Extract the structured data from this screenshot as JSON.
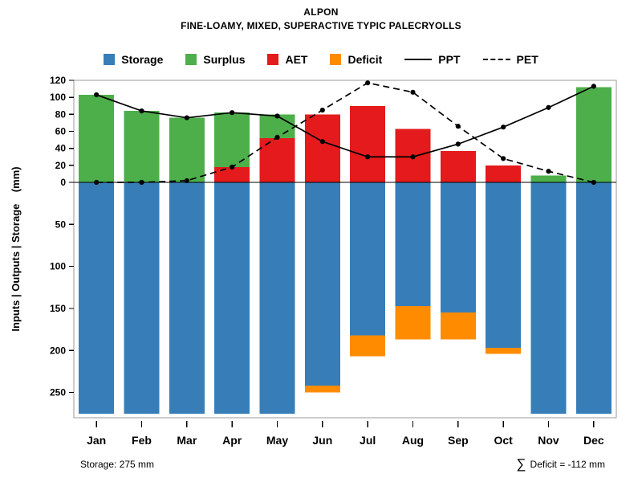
{
  "chart_data": {
    "type": "bar",
    "title": "ALPON",
    "subtitle": "FINE-LOAMY, MIXED, SUPERACTIVE TYPIC PALECRYOLLS",
    "ylabel": "Inputs | Outputs | Storage    (mm)",
    "categories": [
      "Jan",
      "Feb",
      "Mar",
      "Apr",
      "May",
      "Jun",
      "Jul",
      "Aug",
      "Sep",
      "Oct",
      "Nov",
      "Dec"
    ],
    "upper_axis": {
      "label": "Inputs | Outputs",
      "unit": "mm",
      "ylim": [
        0,
        120
      ],
      "yticks": [
        0,
        20,
        40,
        60,
        80,
        100,
        120
      ],
      "direction": "up"
    },
    "lower_axis": {
      "label": "Storage",
      "unit": "mm",
      "ylim": [
        0,
        280
      ],
      "yticks": [
        50,
        100,
        150,
        200,
        250
      ],
      "direction": "down"
    },
    "grid": false,
    "series": [
      {
        "name": "AET",
        "axis": "upper",
        "color": "#e41a1c",
        "values": [
          0,
          0,
          0,
          18,
          52,
          80,
          90,
          63,
          37,
          20,
          0,
          0
        ]
      },
      {
        "name": "Surplus",
        "axis": "upper",
        "color": "#4daf4a",
        "values": [
          103,
          84,
          76,
          64,
          28,
          0,
          0,
          0,
          0,
          0,
          8,
          112
        ]
      },
      {
        "name": "Storage",
        "axis": "lower",
        "color": "#377eb8",
        "values": [
          275,
          275,
          275,
          275,
          275,
          242,
          182,
          147,
          155,
          197,
          275,
          275
        ]
      },
      {
        "name": "Deficit",
        "axis": "lower",
        "color": "#ff8c00",
        "values": [
          0,
          0,
          0,
          0,
          0,
          8,
          25,
          40,
          32,
          7,
          0,
          0
        ]
      }
    ],
    "lines": [
      {
        "name": "PPT",
        "style": "solid",
        "color": "#000000",
        "values": [
          103,
          84,
          76,
          82,
          78,
          48,
          30,
          30,
          45,
          65,
          88,
          113
        ]
      },
      {
        "name": "PET",
        "style": "dashed",
        "color": "#000000",
        "values": [
          0,
          0,
          2,
          18,
          53,
          85,
          117,
          106,
          66,
          28,
          13,
          0
        ]
      }
    ],
    "legend": {
      "position": "top",
      "items": [
        {
          "label": "Storage",
          "swatch": "box",
          "color": "#377eb8"
        },
        {
          "label": "Surplus",
          "swatch": "box",
          "color": "#4daf4a"
        },
        {
          "label": "AET",
          "swatch": "box",
          "color": "#e41a1c"
        },
        {
          "label": "Deficit",
          "swatch": "box",
          "color": "#ff8c00"
        },
        {
          "label": "PPT",
          "swatch": "line-solid",
          "color": "#000000"
        },
        {
          "label": "PET",
          "swatch": "line-dashed",
          "color": "#000000"
        }
      ]
    },
    "annotations": {
      "storage_capacity": "Storage: 275 mm",
      "sigma": "∑",
      "deficit_total": "Deficit = -112 mm",
      "storage_capacity_mm": 275,
      "total_deficit_mm": -112
    }
  }
}
